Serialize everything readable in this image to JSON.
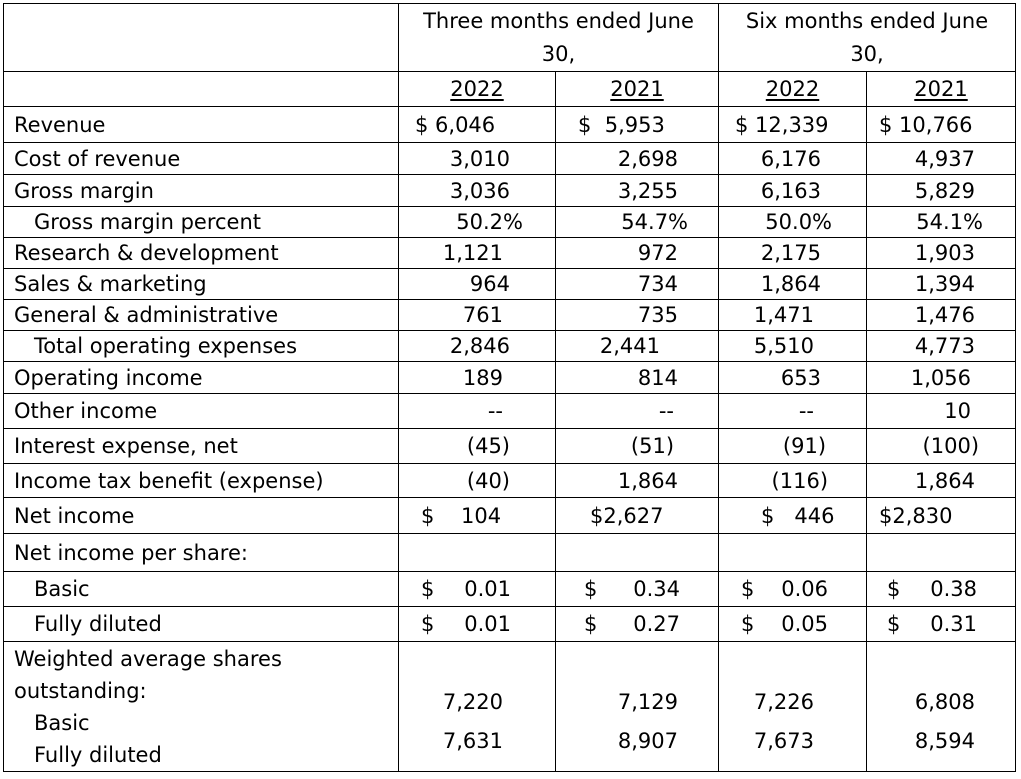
{
  "header": {
    "three_months": "Three months ended June 30,",
    "six_months": "Six months ended June 30,",
    "years": [
      "2022",
      "2021",
      "2022",
      "2021"
    ]
  },
  "rows": [
    {
      "label": "Revenue",
      "values": [
        "$ 6,046",
        "$  5,953",
        "$ 12,339",
        "$ 10,766"
      ]
    },
    {
      "label": "Cost of revenue",
      "values": [
        "3,010",
        "2,698",
        "6,176",
        "4,937"
      ]
    },
    {
      "label": "Gross margin",
      "values": [
        "3,036",
        "3,255",
        "6,163",
        "5,829"
      ]
    },
    {
      "label": "Gross margin percent",
      "values": [
        "50.2%",
        "54.7%",
        "50.0%",
        "54.1%"
      ]
    },
    {
      "label": "Research & development",
      "values": [
        "1,121",
        "972",
        "2,175",
        "1,903"
      ]
    },
    {
      "label": "Sales & marketing",
      "values": [
        "964",
        "734",
        "1,864",
        "1,394"
      ]
    },
    {
      "label": "General & administrative",
      "values": [
        "761",
        "735",
        "1,471",
        "1,476"
      ]
    },
    {
      "label": "Total operating expenses",
      "values": [
        "2,846",
        "2,441",
        "5,510",
        "4,773"
      ]
    },
    {
      "label": "Operating income",
      "values": [
        "189",
        "814",
        "653",
        "1,056"
      ]
    },
    {
      "label": "Other income",
      "values": [
        "--",
        "--",
        "--",
        "10"
      ]
    },
    {
      "label": "Interest expense, net",
      "values": [
        "(45)",
        "(51)",
        "(91)",
        "(100)"
      ]
    },
    {
      "label": "Income tax benefit (expense)",
      "values": [
        "(40)",
        "1,864",
        "(116)",
        "1,864"
      ]
    },
    {
      "label": "Net income",
      "values": [
        "$    104",
        "$2,627",
        "$   446",
        "$2,830"
      ]
    }
  ],
  "per_share": {
    "label": "Net income per share:",
    "basic": {
      "label": "Basic",
      "values": [
        "0.01",
        "0.34",
        "0.06",
        "0.38"
      ]
    },
    "diluted": {
      "label": "Fully diluted",
      "values": [
        "0.01",
        "0.27",
        "0.05",
        "0.31"
      ]
    },
    "currency": "$"
  },
  "shares": {
    "label_line1": "Weighted average shares",
    "label_line2": "outstanding:",
    "basic_label": "Basic",
    "diluted_label": "Fully diluted",
    "basic_values": [
      "7,220",
      "7,129",
      "7,226",
      "6,808"
    ],
    "diluted_values": [
      "7,631",
      "8,907",
      "7,673",
      "8,594"
    ]
  }
}
